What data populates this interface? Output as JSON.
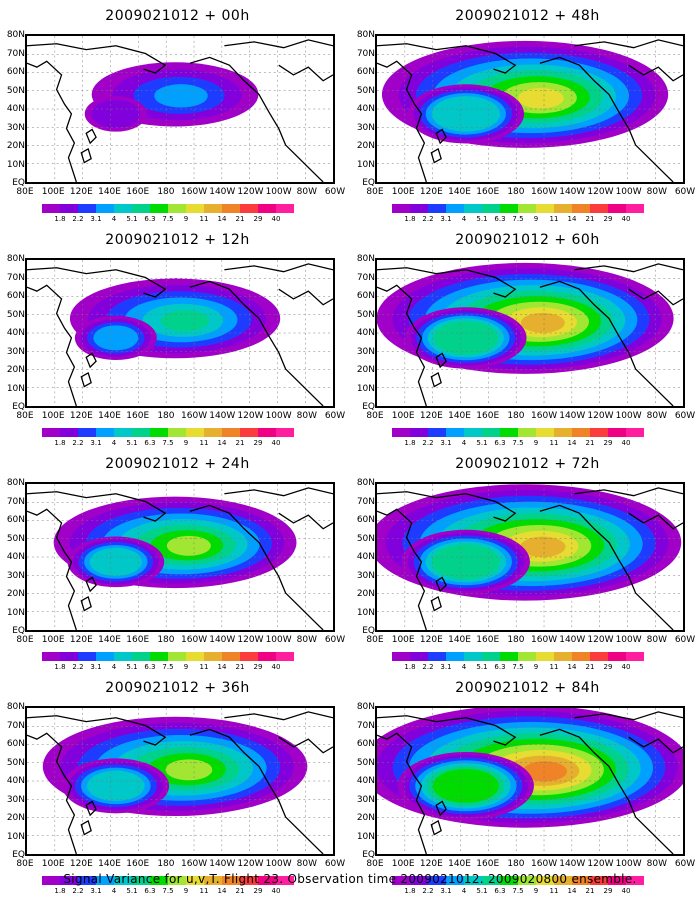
{
  "panels": [
    {
      "title": "2009021012 + 00h",
      "intensity": 0.15,
      "col": 0,
      "row": 0
    },
    {
      "title": "2009021012 + 12h",
      "intensity": 0.35,
      "col": 0,
      "row": 1
    },
    {
      "title": "2009021012 + 24h",
      "intensity": 0.5,
      "col": 0,
      "row": 2
    },
    {
      "title": "2009021012 + 36h",
      "intensity": 0.6,
      "col": 0,
      "row": 3
    },
    {
      "title": "2009021012 + 48h",
      "intensity": 0.7,
      "col": 1,
      "row": 0
    },
    {
      "title": "2009021012 + 60h",
      "intensity": 0.75,
      "col": 1,
      "row": 1
    },
    {
      "title": "2009021012 + 72h",
      "intensity": 0.82,
      "col": 1,
      "row": 2
    },
    {
      "title": "2009021012 + 84h",
      "intensity": 0.9,
      "col": 1,
      "row": 3
    }
  ],
  "y_axis_labels": [
    "80N",
    "70N",
    "60N",
    "50N",
    "40N",
    "30N",
    "20N",
    "10N",
    "EQ"
  ],
  "x_axis_labels": [
    "80E",
    "100E",
    "120E",
    "140E",
    "160E",
    "180",
    "160W",
    "140W",
    "120W",
    "100W",
    "80W",
    "60W"
  ],
  "colorbar": {
    "colors": [
      "#a000c8",
      "#8200dc",
      "#1e3cff",
      "#00a0ff",
      "#00c8c8",
      "#00d28c",
      "#00dc00",
      "#a0e632",
      "#e6dc32",
      "#e6af2d",
      "#f08228",
      "#fa3c3c",
      "#f00082"
    ],
    "labels": [
      "1.8",
      "2.2",
      "3.1",
      "4",
      "5.1",
      "6.3",
      "7.5",
      "9",
      "11",
      "14",
      "21",
      "29",
      "40"
    ]
  },
  "footer": "Signal Variance for u,v,T. Flight 23. Observation time 2009021012. 2009020800 ensemble."
}
